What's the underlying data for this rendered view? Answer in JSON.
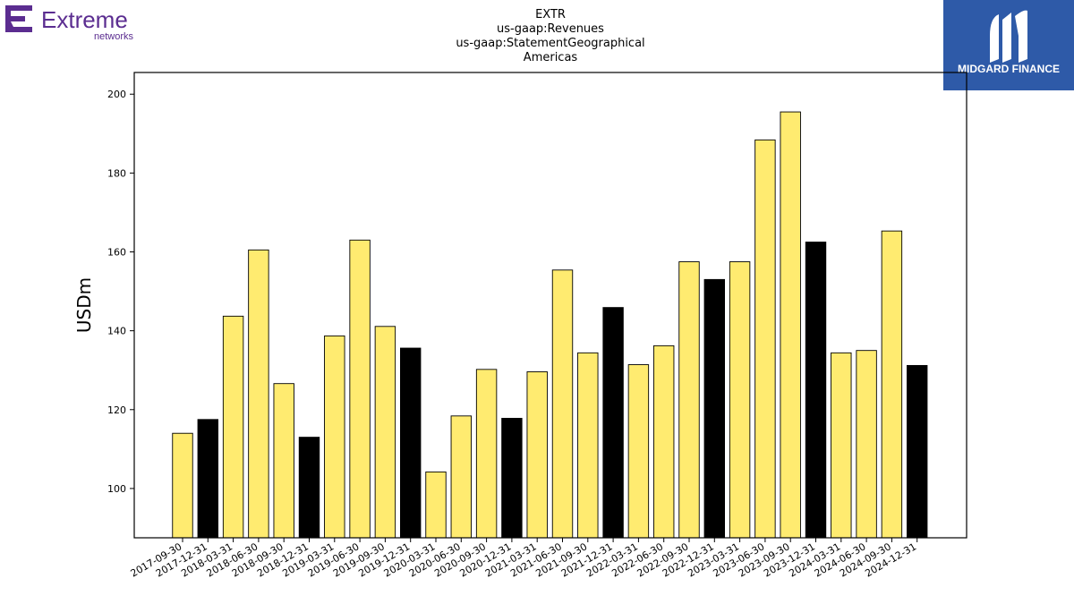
{
  "logos": {
    "left": {
      "name": "Extreme",
      "subname": "networks",
      "color": "#5b2d90"
    },
    "right": {
      "name": "MIDGARD FINANCE",
      "background": "#2e5aa8"
    }
  },
  "chart_data": {
    "type": "bar",
    "title_lines": [
      "EXTR",
      "us-gaap:Revenues",
      "us-gaap:StatementGeographical",
      "Americas"
    ],
    "xlabel": "",
    "ylabel": "USDm",
    "ylim": [
      87.5,
      205.5
    ],
    "yticks": [
      100,
      120,
      140,
      160,
      180,
      200
    ],
    "grid": false,
    "categories": [
      "2017-09-30",
      "2017-12-31",
      "2018-03-31",
      "2018-06-30",
      "2018-09-30",
      "2018-12-31",
      "2019-03-31",
      "2019-06-30",
      "2019-09-30",
      "2019-12-31",
      "2020-03-31",
      "2020-06-30",
      "2020-09-30",
      "2020-12-31",
      "2021-03-31",
      "2021-06-30",
      "2021-09-30",
      "2021-12-31",
      "2022-03-31",
      "2022-06-30",
      "2022-09-30",
      "2022-12-31",
      "2023-03-31",
      "2023-06-30",
      "2023-09-30",
      "2023-12-31",
      "2024-03-31",
      "2024-06-30",
      "2024-09-30",
      "2024-12-31"
    ],
    "values": [
      114.0,
      117.5,
      143.7,
      160.5,
      126.6,
      113.0,
      138.7,
      163.0,
      141.1,
      135.6,
      104.2,
      118.4,
      130.2,
      117.8,
      129.6,
      155.4,
      134.4,
      145.9,
      131.4,
      136.2,
      157.5,
      153.0,
      157.5,
      188.4,
      195.5,
      162.5,
      134.4,
      135.0,
      165.3,
      131.2
    ],
    "colors": {
      "quarter": "#ffeb70",
      "year_end": "#000000",
      "edge": "#000000"
    },
    "bar_colors": [
      "quarter",
      "year_end",
      "quarter",
      "quarter",
      "quarter",
      "year_end",
      "quarter",
      "quarter",
      "quarter",
      "year_end",
      "quarter",
      "quarter",
      "quarter",
      "year_end",
      "quarter",
      "quarter",
      "quarter",
      "year_end",
      "quarter",
      "quarter",
      "quarter",
      "year_end",
      "quarter",
      "quarter",
      "quarter",
      "year_end",
      "quarter",
      "quarter",
      "quarter",
      "year_end"
    ]
  }
}
